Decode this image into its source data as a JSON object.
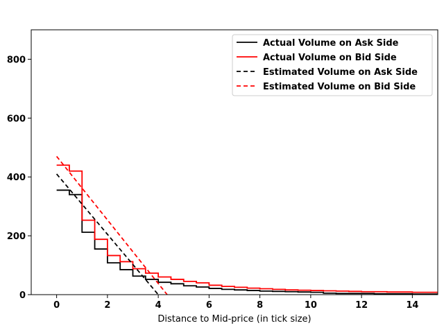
{
  "chart_data": {
    "type": "line",
    "title": "",
    "xlabel": "Distance to Mid-price (in tick size)",
    "ylabel": "",
    "xlim": [
      -1,
      15
    ],
    "ylim": [
      0,
      900
    ],
    "x_ticks": [
      0,
      2,
      4,
      6,
      8,
      10,
      12,
      14
    ],
    "y_ticks": [
      0,
      200,
      400,
      600,
      800
    ],
    "legend_position": "top-right",
    "series": [
      {
        "name": "Actual Volume on Ask Side",
        "color": "#000000",
        "style": "step",
        "x": [
          0,
          0.5,
          1,
          1.5,
          2,
          2.5,
          3,
          3.5,
          4,
          4.5,
          5,
          5.5,
          6,
          6.5,
          7,
          7.5,
          8,
          8.5,
          9,
          9.5,
          10,
          10.5,
          11,
          11.5,
          12,
          12.5,
          13,
          13.5,
          14,
          14.5,
          15
        ],
        "values": [
          355,
          340,
          212,
          155,
          108,
          85,
          63,
          52,
          42,
          37,
          30,
          26,
          21,
          18,
          16,
          14,
          12,
          11,
          10,
          9,
          8,
          5,
          4,
          4,
          4,
          3,
          3,
          3,
          2,
          2,
          2
        ]
      },
      {
        "name": "Actual Volume on Bid Side",
        "color": "#ff0000",
        "style": "step",
        "x": [
          0,
          0.5,
          1,
          1.5,
          2,
          2.5,
          3,
          3.5,
          4,
          4.5,
          5,
          5.5,
          6,
          6.5,
          7,
          7.5,
          8,
          8.5,
          9,
          9.5,
          10,
          10.5,
          11,
          11.5,
          12,
          12.5,
          13,
          13.5,
          14,
          14.5,
          15
        ],
        "values": [
          440,
          420,
          253,
          188,
          133,
          112,
          88,
          73,
          60,
          52,
          45,
          40,
          32,
          28,
          25,
          22,
          20,
          18,
          16,
          15,
          14,
          13,
          12,
          11,
          10,
          10,
          9,
          9,
          8,
          8,
          8
        ]
      },
      {
        "name": "Estimated Volume on Ask Side",
        "color": "#000000",
        "style": "dashed",
        "x": [
          0,
          4.0
        ],
        "values": [
          410,
          0
        ]
      },
      {
        "name": "Estimated Volume on Bid Side",
        "color": "#ff0000",
        "style": "dashed",
        "x": [
          0,
          4.35
        ],
        "values": [
          470,
          0
        ]
      }
    ]
  }
}
